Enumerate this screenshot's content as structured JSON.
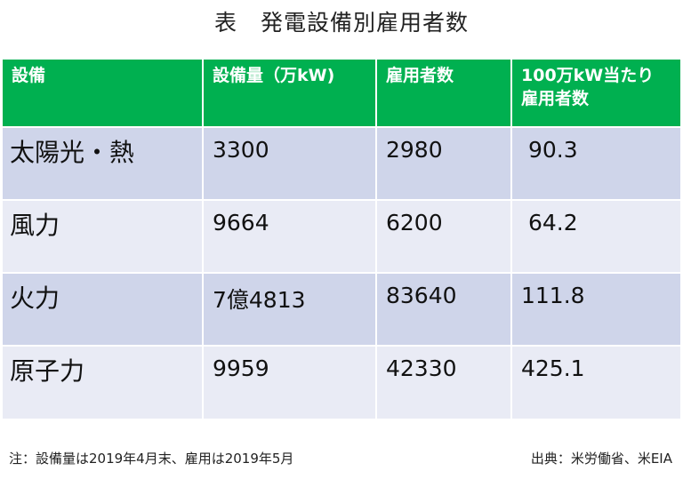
{
  "title": "表　発電設備別雇用者数",
  "table": {
    "headers": [
      "設備",
      "設備量（万kW)",
      "雇用者数",
      [
        "100万kW当たり",
        "雇用者数"
      ]
    ],
    "rows": [
      [
        "太陽光・熱",
        "3300",
        "2980",
        " 90.3"
      ],
      [
        "風力",
        "9664",
        "6200",
        " 64.2"
      ],
      [
        "火力",
        "7億4813",
        "83640",
        "111.8"
      ],
      [
        "原子力",
        "9959",
        "42330",
        "425.1"
      ]
    ]
  },
  "footnote": {
    "left": "注：設備量は2019年4月末、雇用は2019年5月",
    "right": "出典：米労働省、米EIA"
  },
  "colors": {
    "header_bg": "#00b050",
    "header_text": "#ffffff",
    "row_odd": "#cfd5ea",
    "row_even": "#e9ebf5"
  }
}
